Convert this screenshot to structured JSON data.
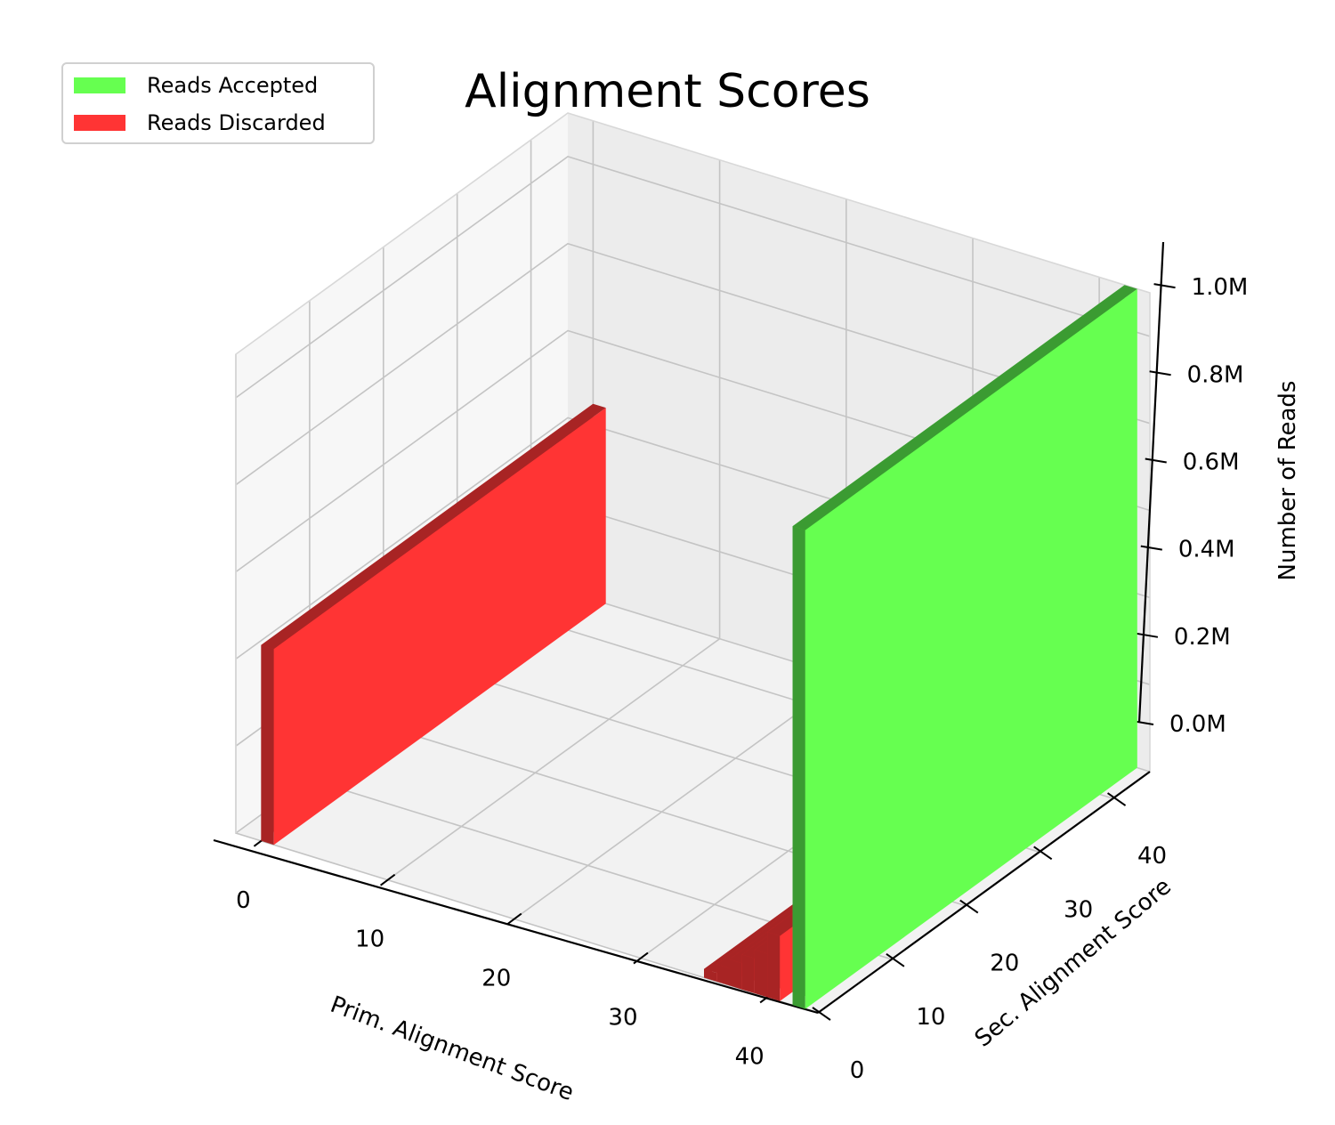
{
  "chart_data": {
    "type": "bar3d",
    "title": "Alignment Scores",
    "xlabel": "Prim. Alignment Score",
    "ylabel": "Sec. Alignment Score",
    "zlabel": "Number of Reads",
    "xlim": [
      -2,
      44
    ],
    "ylim": [
      0,
      45
    ],
    "zlim": [
      0,
      1100000
    ],
    "x_ticks": [
      "0",
      "10",
      "20",
      "30",
      "40"
    ],
    "y_ticks": [
      "0",
      "10",
      "20",
      "30",
      "40"
    ],
    "z_ticks": [
      "0.0M",
      "0.2M",
      "0.4M",
      "0.6M",
      "0.8M",
      "1.0M"
    ],
    "legend": [
      "Reads Accepted",
      "Reads Discarded"
    ],
    "legend_position": "top-left",
    "colors": {
      "accepted": "#66ff50",
      "discarded": "#ff3434"
    },
    "series": [
      {
        "name": "Reads Discarded",
        "status": "discarded",
        "x": 0,
        "y": 0,
        "z": 450000
      },
      {
        "name": "Reads Discarded",
        "status": "discarded",
        "x": 40,
        "y": 0,
        "z": 150000
      },
      {
        "name": "Reads Discarded",
        "status": "discarded",
        "x": 39,
        "y": 0,
        "z": 100000
      },
      {
        "name": "Reads Discarded",
        "status": "discarded",
        "x": 38,
        "y": 0,
        "z": 80000
      },
      {
        "name": "Reads Discarded",
        "status": "discarded",
        "x": 37,
        "y": 0,
        "z": 60000
      },
      {
        "name": "Reads Discarded",
        "status": "discarded",
        "x": 36,
        "y": 0,
        "z": 40000
      },
      {
        "name": "Reads Discarded",
        "status": "discarded",
        "x": 35,
        "y": 0,
        "z": 20000
      },
      {
        "name": "Reads Accepted",
        "status": "accepted",
        "x": 42,
        "y": 0,
        "z": 1100000
      }
    ]
  }
}
